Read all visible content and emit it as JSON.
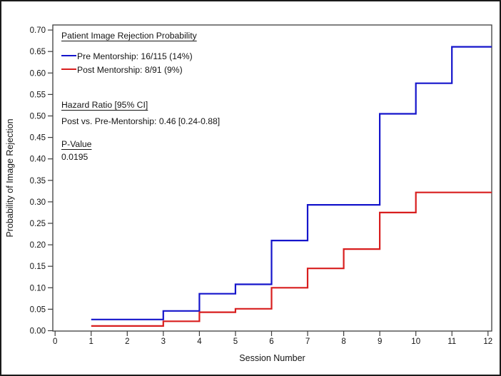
{
  "figure": {
    "border_color": "#1a1a1a",
    "axis_color": "#3d3d3d",
    "text_color": "#141414"
  },
  "legend": {
    "title": "Patient Image Rejection Probability",
    "entries": [
      {
        "name": "pre-mentorship",
        "label": "Pre Mentorship: 16/115 (14%)"
      },
      {
        "name": "post-mentorship",
        "label": "Post Mentorship: 8/91 (9%)"
      }
    ],
    "hazard_heading": "Hazard Ratio [95% CI]",
    "hazard_value": "Post vs. Pre-Mentorship: 0.46 [0.24-0.88]",
    "pvalue_heading": "P-Value",
    "pvalue": "0.0195"
  },
  "chart_data": {
    "type": "line",
    "subtype": "step-after",
    "title": "",
    "xlabel": "Session Number",
    "ylabel": "Probability of Image Rejection",
    "xlim": [
      0,
      12
    ],
    "ylim": [
      0,
      0.7
    ],
    "x_ticks": [
      0,
      1,
      2,
      3,
      4,
      5,
      6,
      7,
      8,
      9,
      10,
      11,
      12
    ],
    "y_ticks": [
      0.0,
      0.05,
      0.1,
      0.15,
      0.2,
      0.25,
      0.3,
      0.35,
      0.4,
      0.45,
      0.5,
      0.55,
      0.6,
      0.65,
      0.7
    ],
    "grid": false,
    "legend_position": "inside-top-left",
    "series": [
      {
        "name": "Pre Mentorship",
        "color": "#1515cb",
        "points": [
          [
            1,
            0.026
          ],
          [
            3,
            0.046
          ],
          [
            4,
            0.086
          ],
          [
            5,
            0.108
          ],
          [
            6,
            0.21
          ],
          [
            7,
            0.293
          ],
          [
            9,
            0.505
          ],
          [
            10,
            0.576
          ],
          [
            11,
            0.661
          ],
          [
            12,
            0.661
          ]
        ]
      },
      {
        "name": "Post Mentorship",
        "color": "#d81e1e",
        "points": [
          [
            1,
            0.011
          ],
          [
            3,
            0.022
          ],
          [
            4,
            0.043
          ],
          [
            5,
            0.051
          ],
          [
            6,
            0.1
          ],
          [
            7,
            0.145
          ],
          [
            8,
            0.19
          ],
          [
            9,
            0.275
          ],
          [
            10,
            0.322
          ],
          [
            12,
            0.322
          ]
        ]
      }
    ]
  }
}
